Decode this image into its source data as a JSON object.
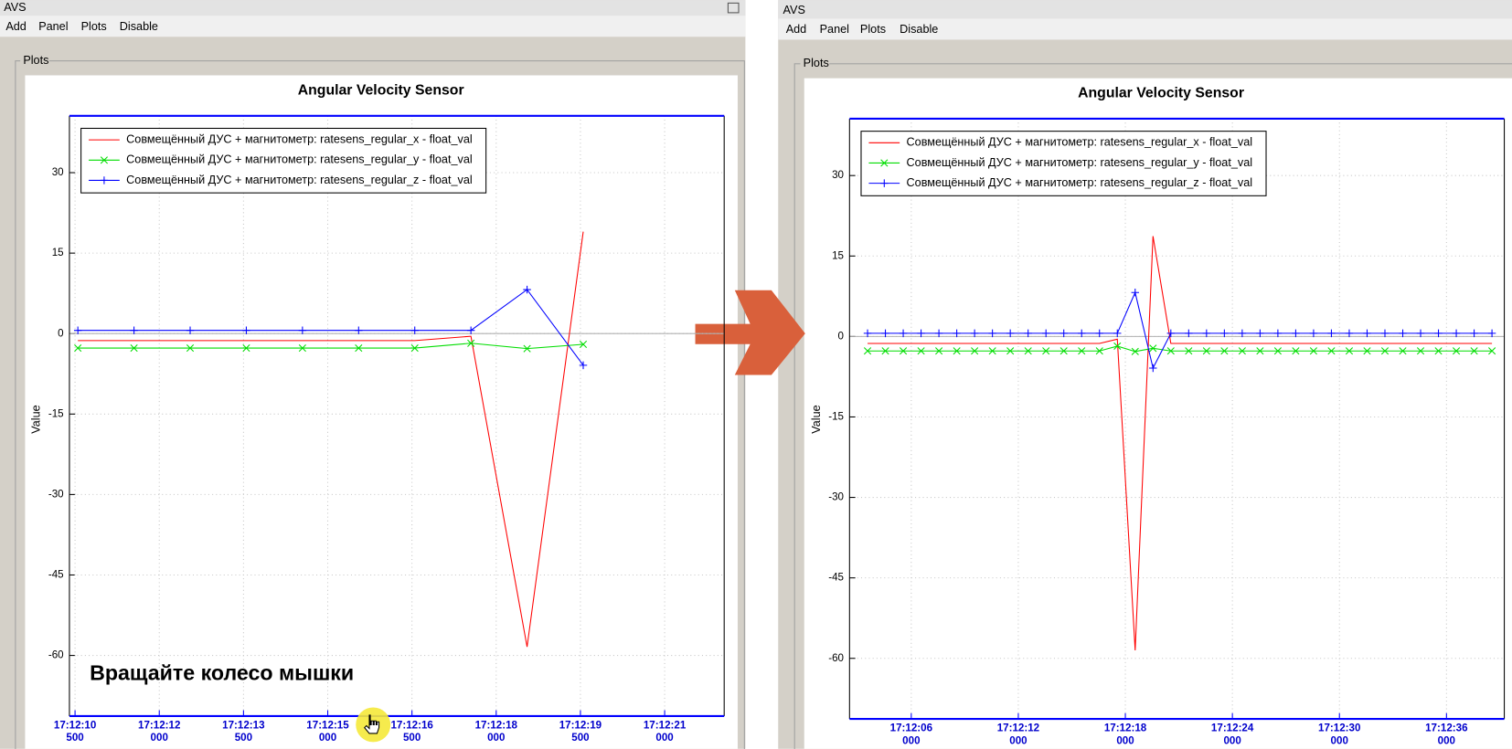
{
  "windows": [
    {
      "title": "AVS",
      "menu": [
        "Add",
        "Panel",
        "Plots",
        "Disable"
      ],
      "group": "Plots"
    },
    {
      "title": "AVS",
      "menu": [
        "Add",
        "Panel",
        "Plots",
        "Disable"
      ],
      "group": "Plots"
    }
  ],
  "hint": "Вращайте колесо мышки",
  "chart_data": [
    {
      "type": "line",
      "title": "Angular Velocity Sensor",
      "ylabel": "Value",
      "grid": true,
      "legend": "upper left",
      "x": [
        10.55,
        11.55,
        12.55,
        13.55,
        14.55,
        15.55,
        16.55,
        17.55,
        18.55,
        19.55
      ],
      "series": [
        {
          "name": "Совмещённый ДУС + магнитометр: ratesens_regular_x - float_val",
          "color": "#ff0000",
          "values": [
            -1.3,
            -1.3,
            -1.3,
            -1.3,
            -1.3,
            -1.3,
            -1.3,
            -0.5,
            -58.4,
            19.0
          ]
        },
        {
          "name": "Совмещённый ДУС + магнитометр: ratesens_regular_y - float_val",
          "color": "#00dd00",
          "marker": "x",
          "values": [
            -2.7,
            -2.7,
            -2.7,
            -2.7,
            -2.7,
            -2.7,
            -2.7,
            -1.8,
            -2.8,
            -2.0
          ]
        },
        {
          "name": "Совмещённый ДУС + магнитометр: ratesens_regular_z - float_val",
          "color": "#0000ff",
          "marker": "+",
          "values": [
            0.6,
            0.6,
            0.6,
            0.6,
            0.6,
            0.6,
            0.6,
            0.6,
            8.2,
            -5.9
          ]
        }
      ],
      "xlim": [
        10.4,
        22.06
      ],
      "ylim": [
        -71.3,
        40.6
      ],
      "xticks": [
        {
          "value": 10.5,
          "label": "17:12:10 500"
        },
        {
          "value": 12,
          "label": "17:12:12 000"
        },
        {
          "value": 13.5,
          "label": "17:12:13 500"
        },
        {
          "value": 15,
          "label": "17:12:15 000"
        },
        {
          "value": 16.5,
          "label": "17:12:16 500"
        },
        {
          "value": 18,
          "label": "17:12:18 000"
        },
        {
          "value": 19.5,
          "label": "17:12:19 500"
        },
        {
          "value": 21,
          "label": "17:12:21 000"
        }
      ],
      "yticks": [
        -60,
        -45,
        -30,
        -15,
        0,
        15,
        30
      ]
    },
    {
      "type": "line",
      "title": "Angular Velocity Sensor",
      "ylabel": "Value",
      "grid": true,
      "legend": "upper left",
      "x": [
        3.55,
        4.55,
        5.55,
        6.55,
        7.55,
        8.55,
        9.55,
        10.55,
        11.55,
        12.55,
        13.55,
        14.55,
        15.55,
        16.55,
        17.55,
        18.55,
        19.55,
        20.55,
        21.55,
        22.55,
        23.55,
        24.55,
        25.55,
        26.55,
        27.55,
        28.55,
        29.55,
        30.55,
        31.55,
        32.55,
        33.55,
        34.55,
        35.55,
        36.55,
        37.55,
        38.55
      ],
      "series": [
        {
          "name": "Совмещённый ДУС + магнитометр: ratesens_regular_x - float_val",
          "color": "#ff0000",
          "values": [
            -1.3,
            -1.3,
            -1.3,
            -1.3,
            -1.3,
            -1.3,
            -1.3,
            -1.3,
            -1.3,
            -1.3,
            -1.3,
            -1.3,
            -1.3,
            -1.3,
            -0.5,
            -58.5,
            18.7,
            -1.3,
            -1.3,
            -1.3,
            -1.3,
            -1.3,
            -1.3,
            -1.3,
            -1.3,
            -1.3,
            -1.3,
            -1.3,
            -1.3,
            -1.3,
            -1.3,
            -1.3,
            -1.3,
            -1.3,
            -1.3,
            -1.3
          ]
        },
        {
          "name": "Совмещённый ДУС + магнитометр: ratesens_regular_y - float_val",
          "color": "#00dd00",
          "marker": "x",
          "values": [
            -2.7,
            -2.7,
            -2.7,
            -2.7,
            -2.7,
            -2.7,
            -2.7,
            -2.7,
            -2.7,
            -2.7,
            -2.7,
            -2.7,
            -2.7,
            -2.7,
            -1.8,
            -2.8,
            -2.2,
            -2.7,
            -2.7,
            -2.7,
            -2.7,
            -2.7,
            -2.7,
            -2.7,
            -2.7,
            -2.7,
            -2.7,
            -2.7,
            -2.7,
            -2.7,
            -2.7,
            -2.7,
            -2.7,
            -2.7,
            -2.7,
            -2.7
          ]
        },
        {
          "name": "Совмещённый ДУС + магнитометр: ratesens_regular_z - float_val",
          "color": "#0000ff",
          "marker": "+",
          "values": [
            0.6,
            0.6,
            0.6,
            0.6,
            0.6,
            0.6,
            0.6,
            0.6,
            0.6,
            0.6,
            0.6,
            0.6,
            0.6,
            0.6,
            0.6,
            8.2,
            -5.9,
            0.6,
            0.6,
            0.6,
            0.6,
            0.6,
            0.6,
            0.6,
            0.6,
            0.6,
            0.6,
            0.6,
            0.6,
            0.6,
            0.6,
            0.6,
            0.6,
            0.6,
            0.6,
            0.6
          ]
        }
      ],
      "xlim": [
        2.54,
        39.24
      ],
      "ylim": [
        -71.3,
        40.6
      ],
      "xticks": [
        {
          "value": 6,
          "label": "17:12:06 000"
        },
        {
          "value": 12,
          "label": "17:12:12 000"
        },
        {
          "value": 18,
          "label": "17:12:18 000"
        },
        {
          "value": 24,
          "label": "17:12:24 000"
        },
        {
          "value": 30,
          "label": "17:12:30 000"
        },
        {
          "value": 36,
          "label": "17:12:36 000"
        }
      ],
      "yticks": [
        -60,
        -45,
        -30,
        -15,
        0,
        15,
        30
      ]
    }
  ]
}
